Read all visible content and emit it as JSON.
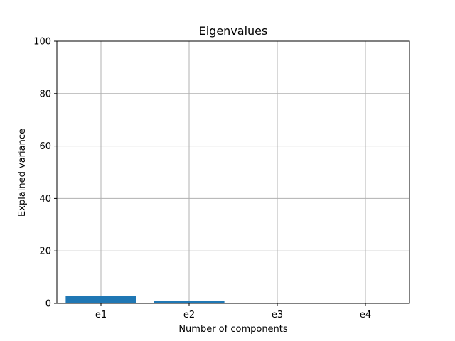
{
  "chart_data": {
    "type": "bar",
    "title": "Eigenvalues",
    "xlabel": "Number of components",
    "ylabel": "Explained variance",
    "categories": [
      "e1",
      "e2",
      "e3",
      "e4"
    ],
    "values": [
      2.9,
      0.9,
      0.15,
      0.05
    ],
    "ylim": [
      0,
      100
    ],
    "yticks": [
      "0",
      "20",
      "40",
      "60",
      "80",
      "100"
    ],
    "grid": true,
    "bar_color": "#1f77b4"
  }
}
